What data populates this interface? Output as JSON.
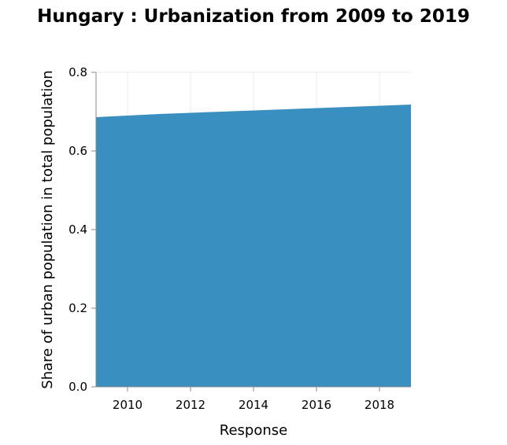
{
  "chart_data": {
    "type": "area",
    "title": "Hungary : Urbanization from 2009 to 2019",
    "xlabel": "Response",
    "ylabel": "Share of urban population in total population",
    "x": [
      2009,
      2010,
      2011,
      2012,
      2013,
      2014,
      2015,
      2016,
      2017,
      2018,
      2019
    ],
    "series": [
      {
        "values": [
          0.686,
          0.69,
          0.694,
          0.697,
          0.7,
          0.703,
          0.706,
          0.709,
          0.712,
          0.715,
          0.718
        ]
      }
    ],
    "xlim": [
      2009,
      2019
    ],
    "ylim": [
      0,
      0.8
    ],
    "xticks": [
      "2010",
      "2012",
      "2014",
      "2016",
      "2018"
    ],
    "yticks": [
      "0.0",
      "0.2",
      "0.4",
      "0.6",
      "0.8"
    ],
    "grid": true,
    "legend": "none",
    "colors": {
      "area": "#3a8fc1",
      "grid": "#ebebeb",
      "axis": "#888888"
    }
  }
}
